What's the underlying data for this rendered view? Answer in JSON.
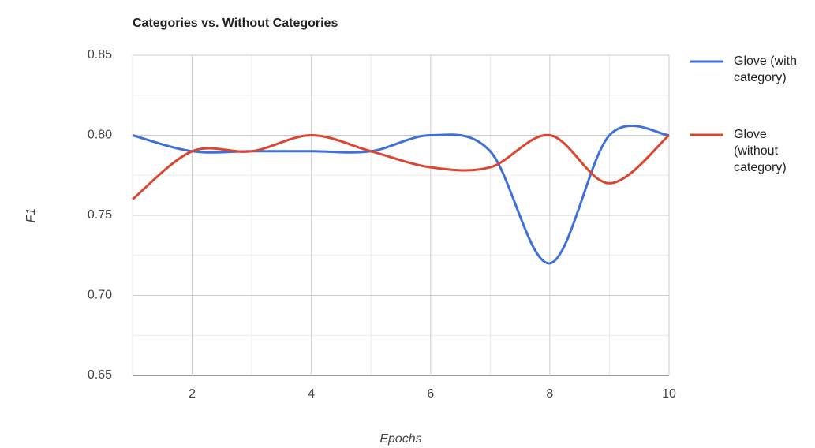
{
  "chart_data": {
    "type": "line",
    "title": "Categories vs. Without Categories",
    "xlabel": "Epochs",
    "ylabel": "F1",
    "x": [
      1,
      2,
      3,
      4,
      5,
      6,
      7,
      8,
      9,
      10
    ],
    "series": [
      {
        "name": "Glove (with category)",
        "color": "#3f6fd9",
        "values": [
          0.8,
          0.79,
          0.79,
          0.79,
          0.79,
          0.8,
          0.79,
          0.72,
          0.8,
          0.8
        ]
      },
      {
        "name": "Glove (without category)",
        "color": "#dc4530",
        "values": [
          0.76,
          0.79,
          0.79,
          0.8,
          0.79,
          0.78,
          0.78,
          0.8,
          0.77,
          0.8
        ]
      }
    ],
    "xlim": [
      1,
      10
    ],
    "xticks": [
      2,
      4,
      6,
      8,
      10
    ],
    "ylim": [
      0.65,
      0.85
    ],
    "yticks": [
      0.65,
      {
        "value": 0.7,
        "label": "0.70"
      },
      0.75,
      {
        "value": 0.8,
        "label": "0.80"
      },
      0.85
    ],
    "xminorticks": [
      1,
      3,
      5,
      7,
      9
    ],
    "yminorticks": [
      0.675,
      0.725,
      0.775,
      0.825
    ],
    "grid": true,
    "smooth": true,
    "legend": "right"
  }
}
